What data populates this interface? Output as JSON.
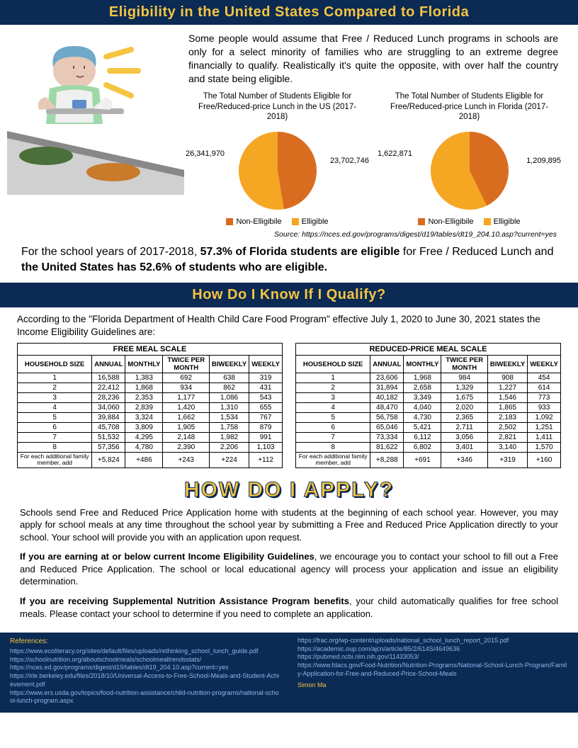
{
  "header1": "Eligibility in the United States Compared to Florida",
  "intro": "Some people would assume that Free / Reduced Lunch programs in schools are only for a select minority of families who are struggling to an extreme degree financially to qualify. Realistically it's quite the opposite, with over half the country and state being eligible.",
  "chart_us": {
    "title": "The Total Number of Students Eligible for Free/Reduced-price Lunch in the US (2017-2018)",
    "left_label": "26,341,970",
    "right_label": "23,702,746",
    "eligible_pct": 52.6,
    "noneligible_pct": 47.4,
    "color_eligible": "#f5a623",
    "color_noneligible": "#d96d1f"
  },
  "chart_fl": {
    "title": "The Total Number of Students Eligible for Free/Reduced-price Lunch in Florida (2017-2018)",
    "left_label": "1,622,871",
    "right_label": "1,209,895",
    "eligible_pct": 57.3,
    "noneligible_pct": 42.7,
    "color_eligible": "#f5a623",
    "color_noneligible": "#d96d1f"
  },
  "legend": {
    "noneligible": "Non-Elligibile",
    "eligible": "Elligible"
  },
  "source": "Source: https://nces.ed.gov/programs/digest/d19/tables/dt19_204.10.asp?current=yes",
  "highlight": {
    "pre": "For the school years of 2017-2018, ",
    "b1": "57.3% of Florida students are eligible",
    "mid": " for Free / Reduced Lunch and ",
    "b2": "the United States has 52.6% of students who are eligible."
  },
  "header2": "How Do I Know If I Qualify?",
  "guidelines_intro": "According to the \"Florida Department of Health Child Care Food Program\" effective July 1, 2020 to June 30, 2021 states the Income Eligibility Guidelines are:",
  "table_headers": [
    "HOUSEHOLD SIZE",
    "ANNUAL",
    "MONTHLY",
    "TWICE PER MONTH",
    "BIWEEKLY",
    "WEEKLY"
  ],
  "free_table": {
    "title": "FREE MEAL SCALE",
    "rows": [
      [
        "1",
        "16,588",
        "1,383",
        "692",
        "638",
        "319"
      ],
      [
        "2",
        "22,412",
        "1,868",
        "934",
        "862",
        "431"
      ],
      [
        "3",
        "28,236",
        "2,353",
        "1,177",
        "1,086",
        "543"
      ],
      [
        "4",
        "34,060",
        "2,839",
        "1,420",
        "1,310",
        "655"
      ],
      [
        "5",
        "39,884",
        "3,324",
        "1,662",
        "1,534",
        "767"
      ],
      [
        "6",
        "45,708",
        "3,809",
        "1,905",
        "1,758",
        "879"
      ],
      [
        "7",
        "51,532",
        "4,295",
        "2,148",
        "1,982",
        "991"
      ],
      [
        "8",
        "57,356",
        "4,780",
        "2,390",
        "2,206",
        "1,103"
      ]
    ],
    "add_row": [
      "For each additional family member, add",
      "+5,824",
      "+486",
      "+243",
      "+224",
      "+112"
    ]
  },
  "reduced_table": {
    "title": "REDUCED-PRICE MEAL SCALE",
    "rows": [
      [
        "1",
        "23,606",
        "1,968",
        "984",
        "908",
        "454"
      ],
      [
        "2",
        "31,894",
        "2,658",
        "1,329",
        "1,227",
        "614"
      ],
      [
        "3",
        "40,182",
        "3,349",
        "1,675",
        "1,546",
        "773"
      ],
      [
        "4",
        "48,470",
        "4,040",
        "2,020",
        "1,865",
        "933"
      ],
      [
        "5",
        "56,758",
        "4,730",
        "2,365",
        "2,183",
        "1,092"
      ],
      [
        "6",
        "65,046",
        "5,421",
        "2,711",
        "2,502",
        "1,251"
      ],
      [
        "7",
        "73,334",
        "6,112",
        "3,056",
        "2,821",
        "1,411"
      ],
      [
        "8",
        "81,622",
        "6,802",
        "3,401",
        "3,140",
        "1,570"
      ]
    ],
    "add_row": [
      "For each additional family member, add",
      "+8,288",
      "+691",
      "+346",
      "+319",
      "+160"
    ]
  },
  "apply_title": "HOW DO I APPLY?",
  "apply": {
    "p1": "Schools send Free and Reduced Price Application home with students at the beginning of each school year. However, you may apply for school meals at any time throughout the school year by submitting a Free and Reduced Price Application directly to your school. Your school will provide you with an application upon request.",
    "p2a": "If you are earning at or below current Income Eligibility Guidelines",
    "p2b": ", we encourage you to contact your school to fill out a Free and Reduced Price Application. The school or local educational agency will process your application and issue an eligibility determination.",
    "p3a": "If you are receiving Supplemental Nutrition Assistance Program benefits",
    "p3b": ", your child automatically qualifies for free school meals. Please contact your school to determine if you need to complete an application."
  },
  "refs": {
    "title": "References:",
    "col1": [
      "https://www.ecoliteracy.org/sites/default/files/uploads/rethinking_school_lunch_guide.pdf",
      "https://schoolnutrition.org/aboutschoolmeals/schoolmealtrendsstats/",
      "https://nces.ed.gov/programs/digest/d19/tables/dt19_204.10.asp?current=yes",
      "https://irle.berkeley.edu/files/2018/10/Universal-Access-to-Free-School-Meals-and-Student-Achievement.pdf",
      "https://www.ers.usda.gov/topics/food-nutrition-assistance/child-nutrition-programs/national-school-lunch-program.aspx"
    ],
    "col2": [
      "https://frac.org/wp-content/uploads/national_school_lunch_report_2015.pdf",
      "https://academic.oup.com/ajcn/article/85/2/614S/4649636",
      "https://pubmed.ncbi.nlm.nih.gov/11433053/",
      "https://www.fdacs.gov/Food-Nutrition/Nutrition-Programs/National-School-Lunch-Program/Family-Application-for-Free-and-Reduced-Price-School-Meals"
    ],
    "author": "Simon Ma"
  },
  "colors": {
    "navy": "#0b2a54",
    "gold": "#f5c542",
    "orange_dark": "#d96d1f",
    "orange_light": "#f5a623"
  }
}
